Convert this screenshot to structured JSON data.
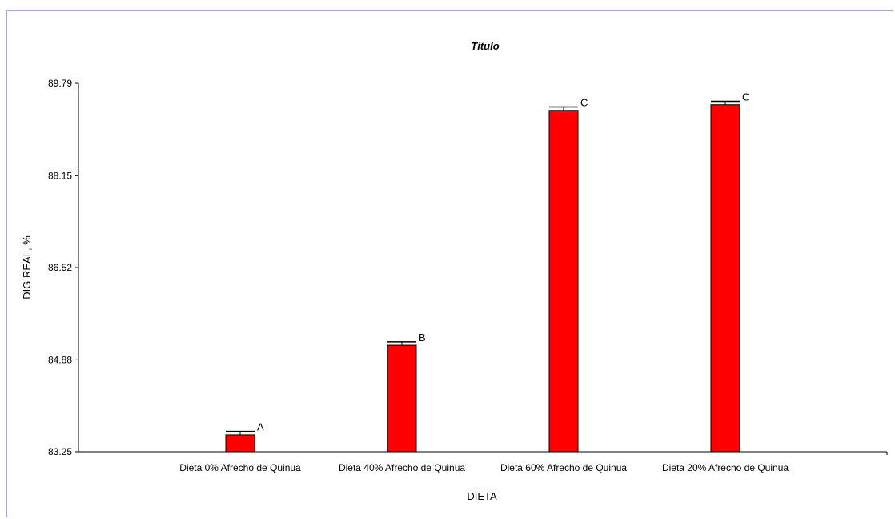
{
  "chart_data": {
    "type": "bar",
    "title": "Título",
    "xlabel": "DIETA",
    "ylabel": "DIG REAL, %",
    "ylim": [
      83.25,
      89.79
    ],
    "yticks": [
      83.25,
      84.88,
      86.52,
      88.15,
      89.79
    ],
    "ytick_labels": [
      "83.25",
      "84.88",
      "86.52",
      "88.15",
      "89.79"
    ],
    "categories": [
      "Dieta 0% Afrecho de Quinua",
      "Dieta 40% Afrecho de Quinua",
      "Dieta 60% Afrecho de Quinua",
      "Dieta 20% Afrecho de Quinua"
    ],
    "values": [
      83.55,
      85.14,
      89.31,
      89.41
    ],
    "error": [
      0.06,
      0.06,
      0.06,
      0.06
    ],
    "group_labels": [
      "A",
      "B",
      "C",
      "C"
    ],
    "grid": false,
    "legend": "none",
    "colors": {
      "bar": "#ff0000",
      "bar_edge": "#000000",
      "axis": "#000000",
      "frame": "#9bb0c8"
    }
  }
}
